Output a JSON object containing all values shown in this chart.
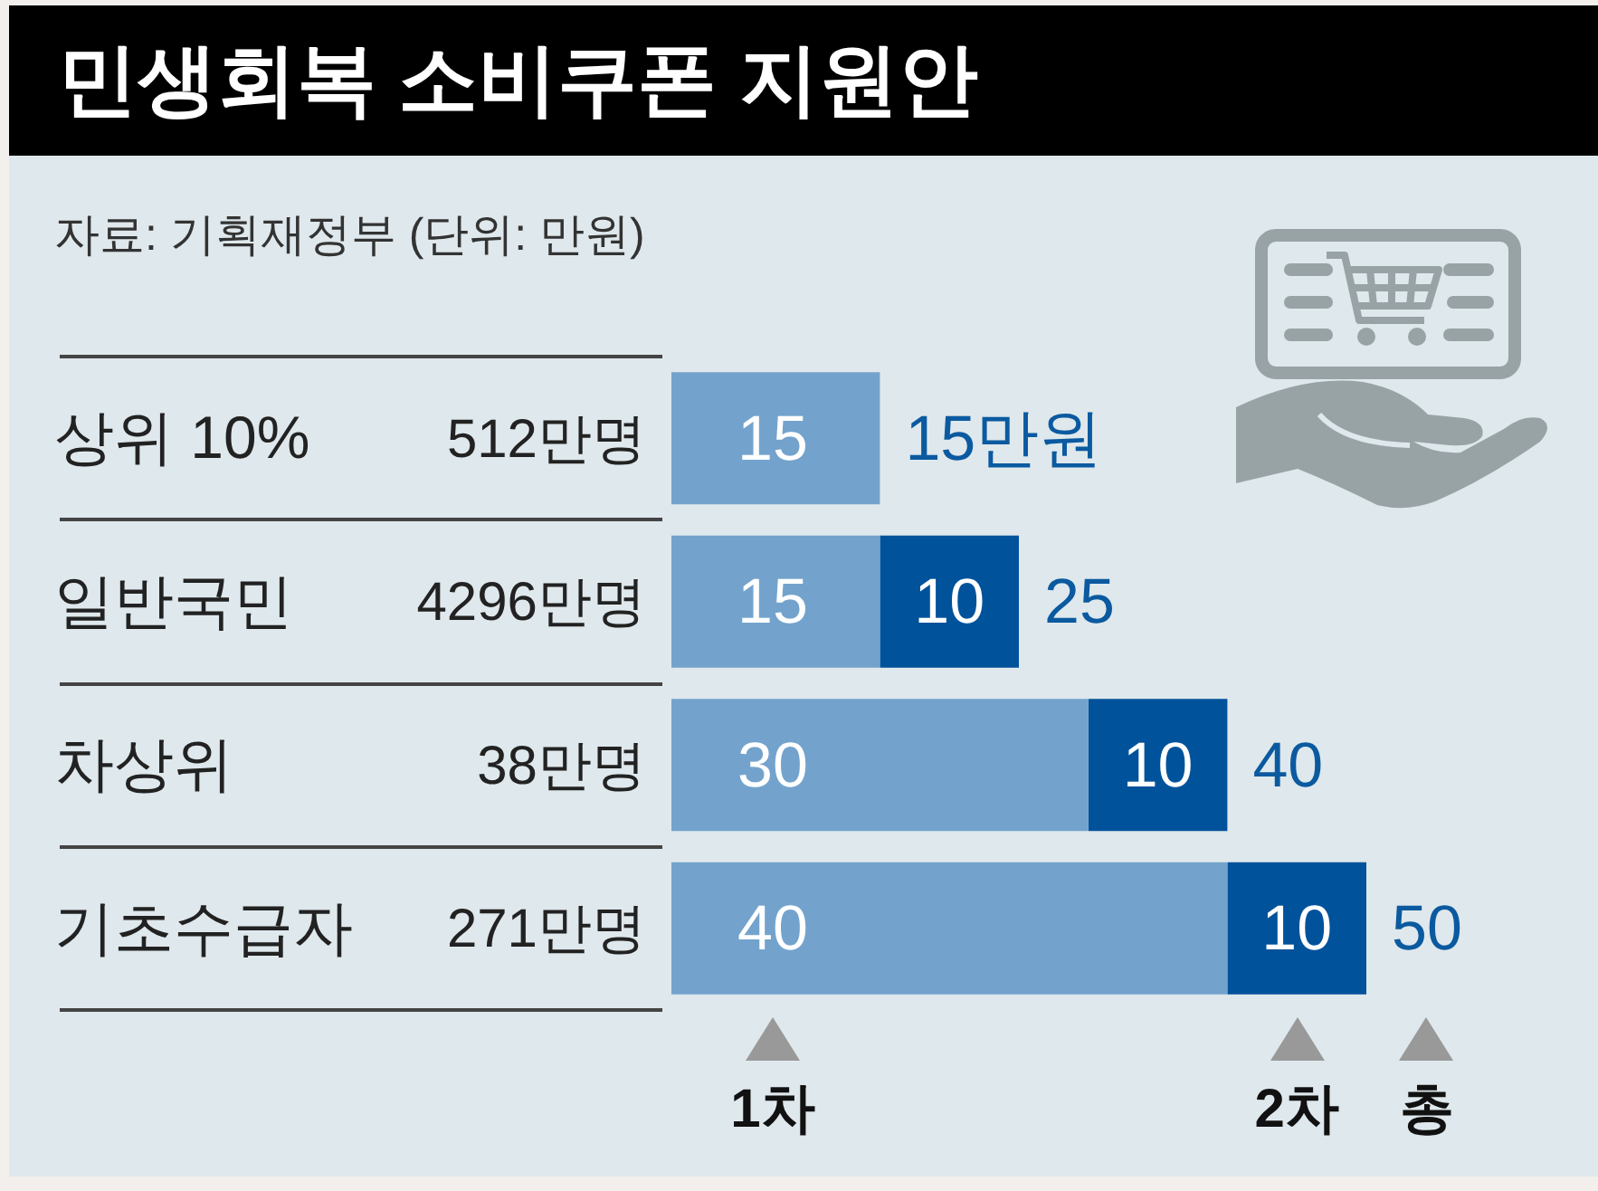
{
  "chart_data": {
    "type": "bar",
    "orientation": "horizontal",
    "stacked": true,
    "title": "민생회복 소비쿠폰 지원안",
    "annotations": [
      "자료: 기획재정부 (단위: 만원)",
      "총"
    ],
    "categories": [
      "상위 10%",
      "일반국민",
      "차상위",
      "기초수급자"
    ],
    "y2_categories": [
      "512만명",
      "4296만명",
      "38만명",
      "271만명"
    ],
    "series": [
      {
        "name": "1차",
        "color": "#73a3cd",
        "values": [
          15,
          15,
          30,
          40
        ]
      },
      {
        "name": "2차",
        "color": "#00529b",
        "values": [
          null,
          10,
          10,
          10
        ]
      }
    ],
    "totals": [
      "15만원",
      "25",
      "40",
      "50"
    ],
    "data_labels": true,
    "legend": "bottom",
    "tick_labels": "y"
  }
}
